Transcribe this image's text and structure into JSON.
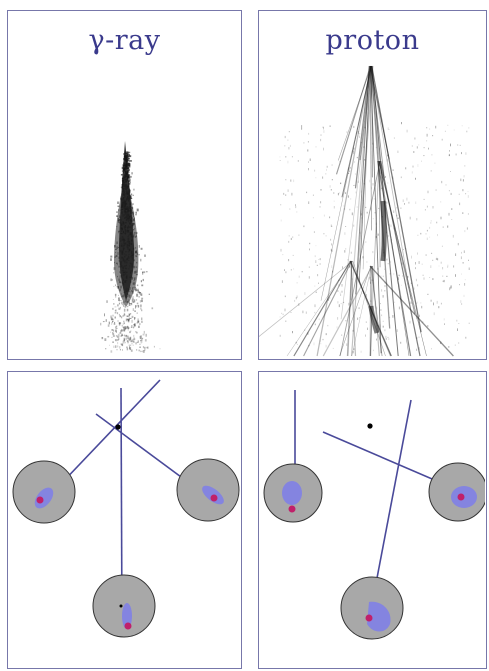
{
  "panels": {
    "gamma": {
      "title": "γ-ray"
    },
    "proton": {
      "title": "proton"
    }
  },
  "colors": {
    "frame": "#7777aa",
    "title": "#3a3a8c",
    "shower": "#1a1a1a",
    "track": "#4a4a9a",
    "mirror_fill": "#a8a8a8",
    "mirror_stroke": "#333333",
    "image_blob": "#7f7fe6",
    "image_center": "#c0206a",
    "source": "#000000"
  },
  "icons": [
    "gamma-shower-icon",
    "proton-shower-icon",
    "telescope-mirror-icon"
  ]
}
